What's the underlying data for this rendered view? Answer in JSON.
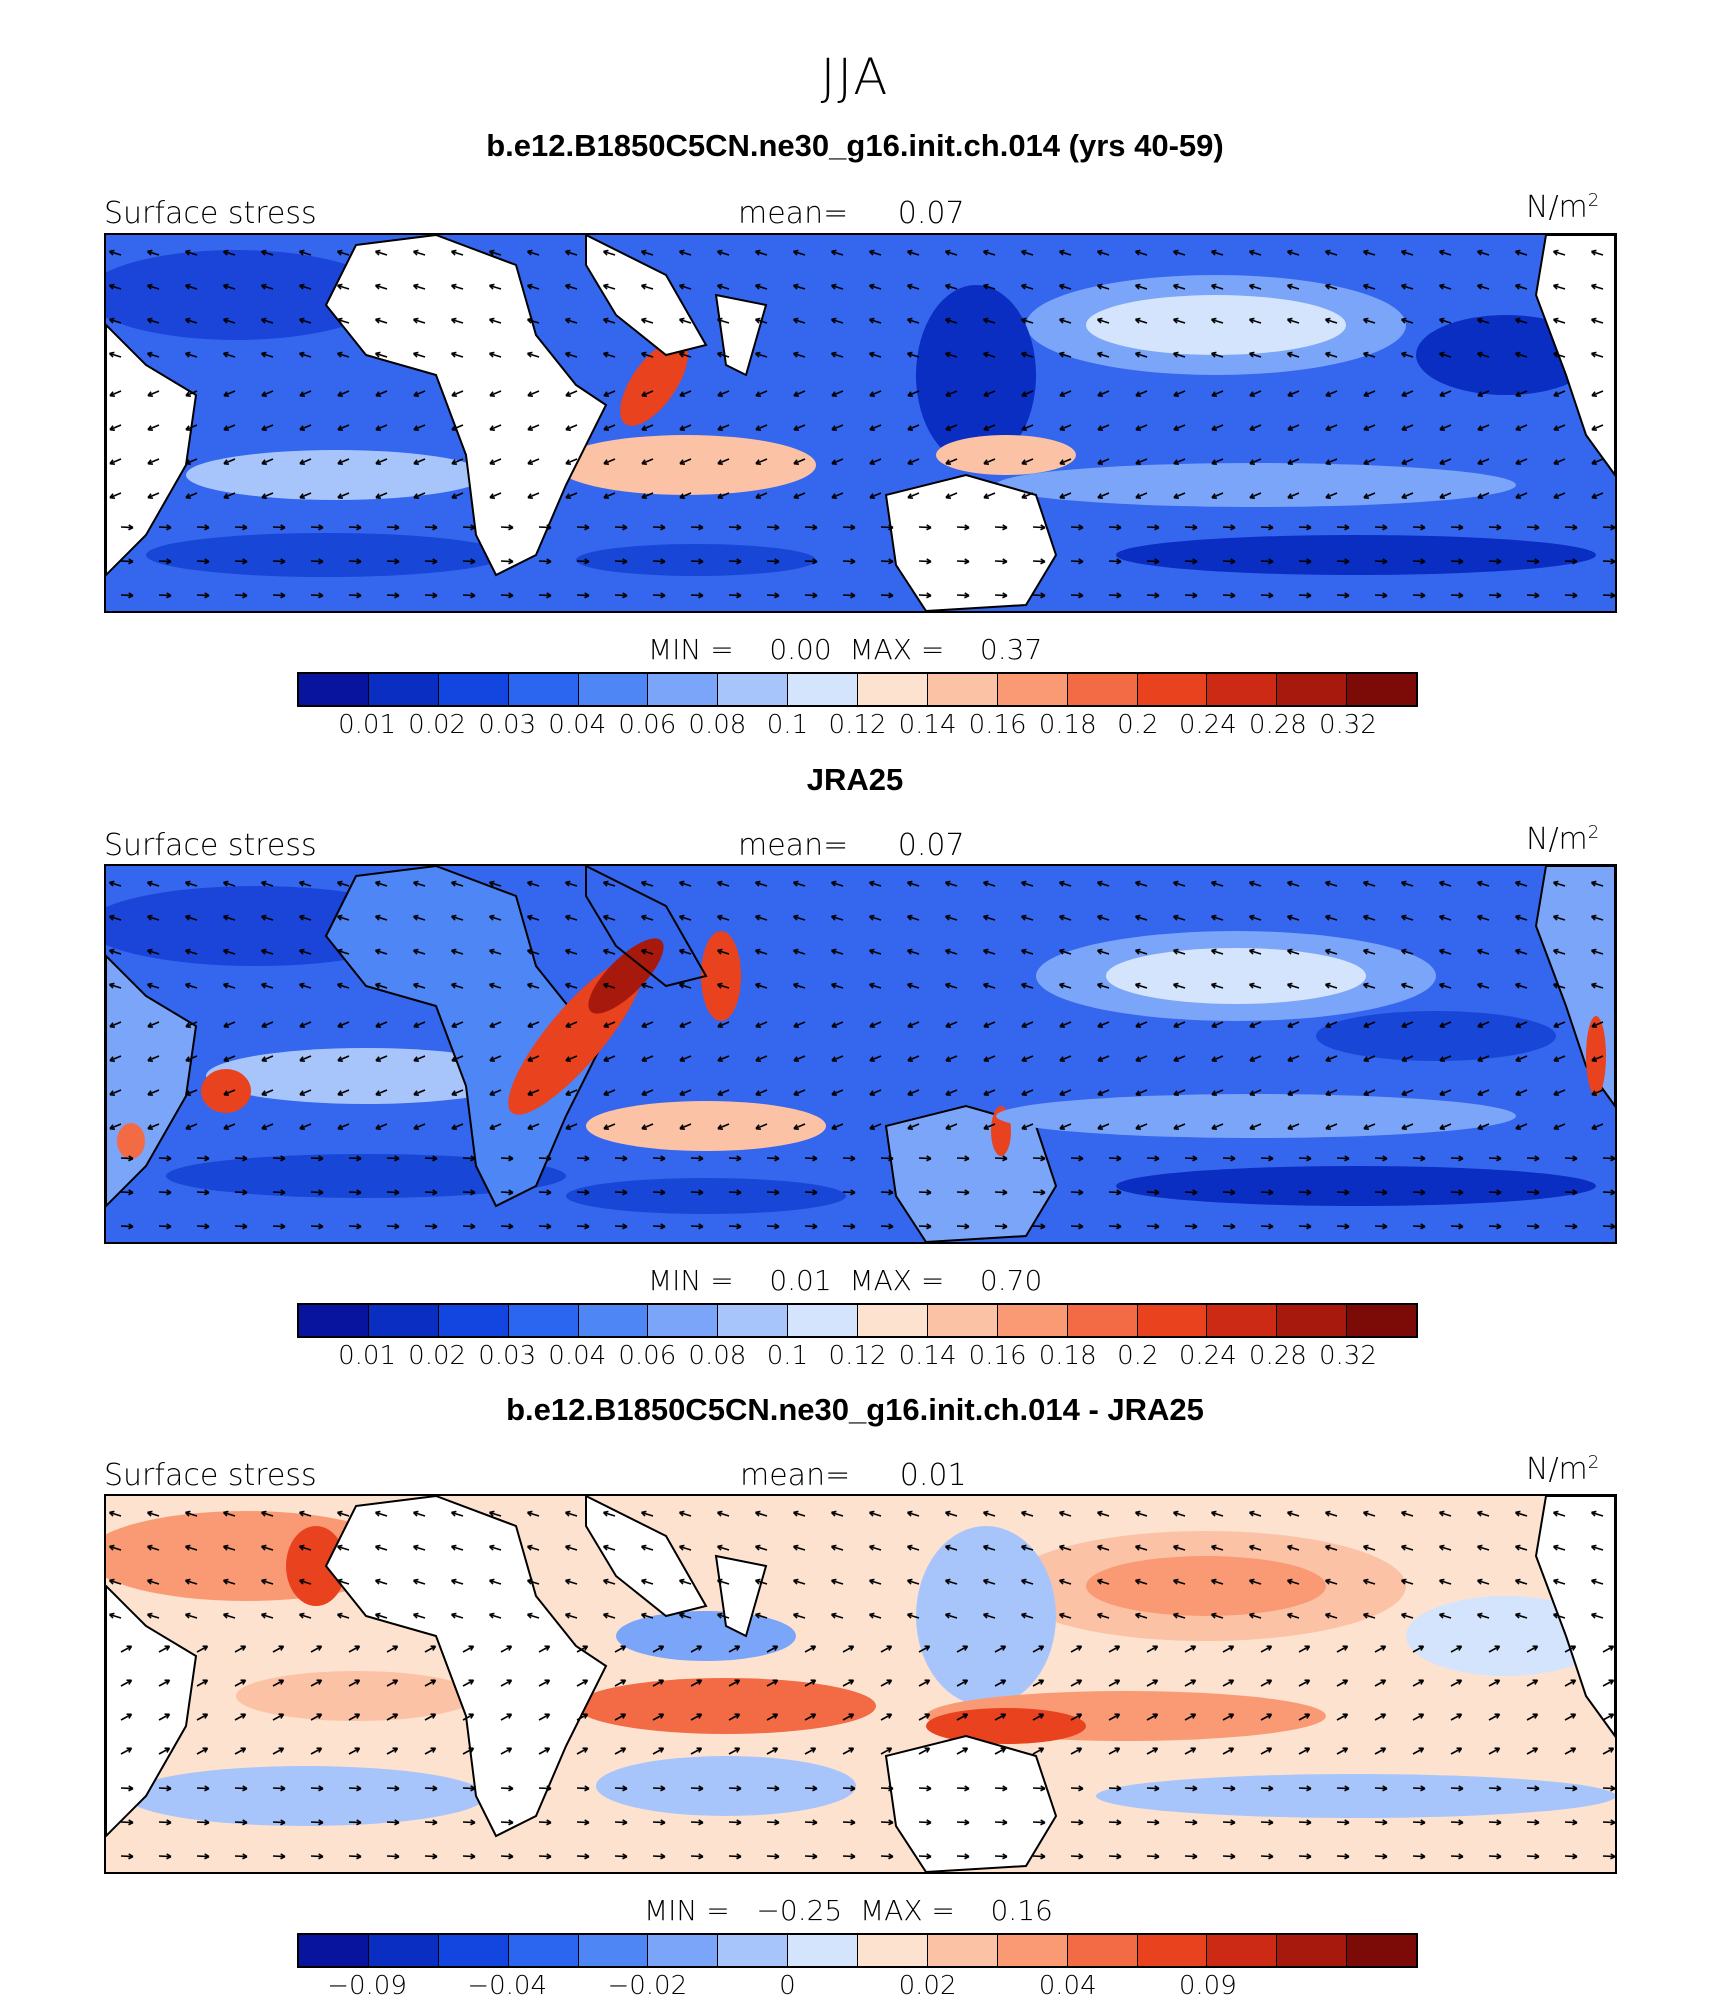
{
  "figure": {
    "season": "JJA"
  },
  "panels": [
    {
      "title": "b.e12.B1850C5CN.ne30_g16.init.ch.014 (yrs 40-59)",
      "variable": "Surface stress",
      "mean_label": "mean=",
      "mean": "0.07",
      "units": "N/m",
      "units_sup": "2",
      "minmax": "MIN =    0.00  MAX =    0.37",
      "colorbar": {
        "colors": [
          "#08139e",
          "#0a2dc2",
          "#1346e0",
          "#2a66f0",
          "#4f86f5",
          "#7aa5f8",
          "#a8c5fb",
          "#d4e4fc",
          "#fde2cf",
          "#fcc2a5",
          "#f99a75",
          "#f26b45",
          "#e8421f",
          "#cc2a14",
          "#a8190d",
          "#7c0a06"
        ],
        "ticks": [
          "0.01",
          "0.02",
          "0.03",
          "0.04",
          "0.06",
          "0.08",
          "0.1",
          "0.12",
          "0.14",
          "0.16",
          "0.18",
          "0.2",
          "0.24",
          "0.28",
          "0.32"
        ]
      }
    },
    {
      "title": "JRA25",
      "variable": "Surface stress",
      "mean_label": "mean=",
      "mean": "0.07",
      "units": "N/m",
      "units_sup": "2",
      "minmax": "MIN =    0.01  MAX =    0.70",
      "colorbar": {
        "colors": [
          "#08139e",
          "#0a2dc2",
          "#1346e0",
          "#2a66f0",
          "#4f86f5",
          "#7aa5f8",
          "#a8c5fb",
          "#d4e4fc",
          "#fde2cf",
          "#fcc2a5",
          "#f99a75",
          "#f26b45",
          "#e8421f",
          "#cc2a14",
          "#a8190d",
          "#7c0a06"
        ],
        "ticks": [
          "0.01",
          "0.02",
          "0.03",
          "0.04",
          "0.06",
          "0.08",
          "0.1",
          "0.12",
          "0.14",
          "0.16",
          "0.18",
          "0.2",
          "0.24",
          "0.28",
          "0.32"
        ]
      }
    },
    {
      "title": "b.e12.B1850C5CN.ne30_g16.init.ch.014 - JRA25",
      "variable": "Surface stress",
      "mean_label": "mean=",
      "mean": "0.01",
      "units": "N/m",
      "units_sup": "2",
      "minmax": "MIN =   −0.25  MAX =    0.16",
      "colorbar": {
        "colors": [
          "#08139e",
          "#0a2dc2",
          "#1346e0",
          "#2a66f0",
          "#4f86f5",
          "#7aa5f8",
          "#a8c5fb",
          "#d4e4fc",
          "#fde2cf",
          "#fcc2a5",
          "#f99a75",
          "#f26b45",
          "#e8421f",
          "#cc2a14",
          "#a8190d",
          "#7c0a06"
        ],
        "ticks": [
          "−0.09",
          "",
          "−0.04",
          "",
          "−0.02",
          "",
          "0",
          "",
          "0.02",
          "",
          "0.04",
          "",
          "0.09",
          "",
          ""
        ]
      }
    }
  ]
}
